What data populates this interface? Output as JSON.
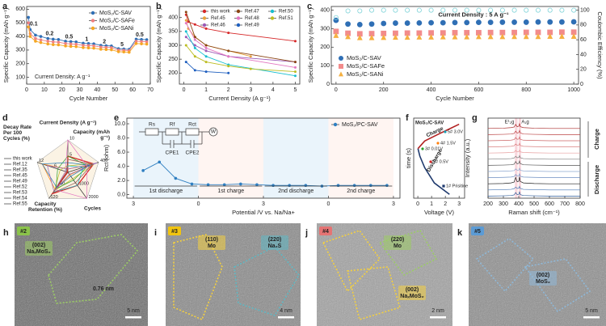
{
  "chart_data": [
    {
      "type": "line",
      "label": "a",
      "xlabel": "Cycle Number",
      "ylabel": "Specific Capacity (mAh g⁻¹)",
      "x": [
        1,
        2,
        5,
        8,
        12,
        15,
        18,
        22,
        25,
        28,
        32,
        35,
        38,
        42,
        45,
        48,
        52,
        55,
        58,
        62,
        65,
        68
      ],
      "xlim": [
        0,
        70
      ],
      "xticks": [
        0,
        10,
        20,
        30,
        40,
        50,
        60,
        70
      ],
      "ylim": [
        50,
        620
      ],
      "yticks": [
        100,
        200,
        300,
        400,
        500,
        600
      ],
      "markers": true,
      "legend": "upper right",
      "annotations": [
        "0.1",
        "0.2",
        "0.5",
        "1",
        "2",
        "5",
        "0.5",
        "Current Density: A g⁻¹"
      ],
      "series": [
        {
          "name": "MoS₂/C-SAV",
          "color": "#2f6fb5",
          "values": [
            540,
            450,
            410,
            400,
            385,
            380,
            378,
            365,
            362,
            360,
            350,
            348,
            346,
            335,
            332,
            330,
            310,
            308,
            305,
            380,
            378,
            376
          ]
        },
        {
          "name": "MoS₂/C-SAFe",
          "color": "#f08080",
          "values": [
            500,
            420,
            385,
            375,
            365,
            360,
            358,
            348,
            345,
            343,
            335,
            333,
            331,
            322,
            320,
            318,
            300,
            298,
            296,
            365,
            363,
            361
          ]
        },
        {
          "name": "MoS₂/C-SANi",
          "color": "#f5a623",
          "values": [
            470,
            400,
            365,
            355,
            345,
            340,
            338,
            330,
            327,
            325,
            318,
            316,
            314,
            306,
            304,
            302,
            288,
            286,
            284,
            348,
            346,
            344
          ]
        }
      ]
    },
    {
      "type": "line",
      "label": "b",
      "xlabel": "Current Density (A g⁻¹)",
      "ylabel": "Specific Capacity (mAh g⁻¹)",
      "xlim": [
        -0.2,
        5.2
      ],
      "xticks": [
        0,
        1,
        2,
        3,
        4,
        5
      ],
      "ylim": [
        160,
        440
      ],
      "yticks": [
        200,
        250,
        300,
        350,
        400
      ],
      "markers": true,
      "legend": "upper right",
      "series": [
        {
          "name": "this work",
          "color": "#d62728",
          "x": [
            0.1,
            0.2,
            0.5,
            1,
            2,
            5
          ],
          "values": [
            410,
            385,
            375,
            360,
            345,
            315
          ]
        },
        {
          "name": "Ref.45",
          "color": "#e8a33d",
          "x": [
            0.1,
            0.2,
            0.5,
            1,
            2,
            3
          ],
          "values": [
            390,
            360,
            330,
            300,
            280,
            260
          ]
        },
        {
          "name": "Ref.46",
          "color": "#9b59b6",
          "x": [
            0.1,
            0.5,
            1,
            2,
            5
          ],
          "values": [
            330,
            300,
            280,
            260,
            240
          ]
        },
        {
          "name": "Ref.47",
          "color": "#8b4513",
          "x": [
            0.1,
            0.5,
            1,
            2,
            5
          ],
          "values": [
            420,
            330,
            300,
            280,
            240
          ]
        },
        {
          "name": "Ref.48",
          "color": "#e377c2",
          "x": [
            0.1,
            0.5,
            1,
            2,
            5
          ],
          "values": [
            380,
            320,
            290,
            260,
            220
          ]
        },
        {
          "name": "Ref.49",
          "color": "#1f5fbf",
          "x": [
            0.1,
            0.5,
            1,
            2
          ],
          "values": [
            240,
            210,
            205,
            200
          ]
        },
        {
          "name": "Ref.50",
          "color": "#17becf",
          "x": [
            0.1,
            0.5,
            1,
            2,
            5
          ],
          "values": [
            350,
            290,
            260,
            230,
            190
          ]
        },
        {
          "name": "Ref.51",
          "color": "#bcbd22",
          "x": [
            0.1,
            0.5,
            1,
            2,
            3,
            5
          ],
          "values": [
            300,
            260,
            240,
            225,
            215,
            205
          ]
        }
      ]
    },
    {
      "type": "scatter",
      "label": "c",
      "xlabel": "Cycle Number",
      "ylabel": "Specific Capacity (mAh g⁻¹)",
      "y2label": "Coulombic Efficiency (%)",
      "x": [
        0,
        50,
        100,
        150,
        200,
        250,
        300,
        350,
        400,
        450,
        500,
        550,
        600,
        650,
        700,
        750,
        800,
        850,
        900,
        950,
        1000
      ],
      "xlim": [
        -20,
        1020
      ],
      "xticks": [
        0,
        200,
        400,
        600,
        800,
        1000
      ],
      "ylim": [
        0,
        420
      ],
      "yticks": [
        0,
        100,
        200,
        300,
        400
      ],
      "y2lim": [
        0,
        105
      ],
      "y2ticks": [
        0,
        20,
        40,
        60,
        80,
        100
      ],
      "legend": "lower left",
      "annotations": [
        "Current Density : 5 A g⁻¹"
      ],
      "series": [
        {
          "name": "MoS₂/C-SAV",
          "color": "#2f6fb5",
          "marker": "circle",
          "values": [
            345,
            325,
            322,
            325,
            328,
            330,
            330,
            331,
            332,
            332,
            333,
            333,
            334,
            334,
            335,
            335,
            335,
            336,
            336,
            336,
            337
          ]
        },
        {
          "name": "MoS₂/C-SAFe",
          "color": "#f28b8b",
          "marker": "square",
          "values": [
            285,
            275,
            272,
            273,
            274,
            275,
            276,
            276,
            277,
            277,
            278,
            278,
            278,
            279,
            279,
            279,
            280,
            280,
            280,
            281,
            281
          ]
        },
        {
          "name": "MoS₂/C-SANi",
          "color": "#f5b041",
          "marker": "triangle",
          "values": [
            262,
            255,
            250,
            250,
            251,
            252,
            252,
            253,
            253,
            254,
            254,
            254,
            255,
            255,
            255,
            256,
            256,
            256,
            257,
            257,
            257
          ]
        },
        {
          "color": "#7fd3d8",
          "marker": "ring",
          "axis": "y2",
          "values": [
            90,
            99,
            99,
            100,
            100,
            100,
            100,
            100,
            100,
            100,
            100,
            100,
            100,
            100,
            100,
            100,
            100,
            100,
            100,
            100,
            100
          ]
        }
      ]
    },
    {
      "type": "radar",
      "label": "d",
      "axes": [
        {
          "label": "Current Density (A g⁻¹)",
          "ticks": [
            5,
            10
          ]
        },
        {
          "label": "Capacity (mAh g⁻¹)",
          "ticks": [
            200,
            400
          ]
        },
        {
          "label": "Cycles",
          "ticks": [
            1000,
            2000
          ]
        },
        {
          "label": "Capacity Retention (%)",
          "ticks": [
            60,
            120
          ]
        },
        {
          "label": "Decay Rate Per 100 Cycles (%)",
          "ticks": [
            6,
            12
          ]
        }
      ],
      "legend": "left",
      "series": [
        {
          "name": "this work",
          "color": "#d62728",
          "values": [
            5,
            335,
            1000,
            98,
            0.2
          ]
        },
        {
          "name": "Ref.12",
          "color": "#ff7f0e",
          "values": [
            1,
            300,
            200,
            80,
            10
          ]
        },
        {
          "name": "Ref.35",
          "color": "#bcbd22",
          "values": [
            2,
            350,
            500,
            85,
            3
          ]
        },
        {
          "name": "Ref.45",
          "color": "#2ca02c",
          "values": [
            5,
            260,
            600,
            75,
            4
          ]
        },
        {
          "name": "Ref.49",
          "color": "#17becf",
          "values": [
            2,
            200,
            1000,
            90,
            1
          ]
        },
        {
          "name": "Ref.52",
          "color": "#1f77b4",
          "values": [
            3,
            280,
            300,
            70,
            10
          ]
        },
        {
          "name": "Ref.53",
          "color": "#9467bd",
          "values": [
            1,
            380,
            150,
            88,
            8
          ]
        },
        {
          "name": "Ref.54",
          "color": "#e377c2",
          "values": [
            10,
            250,
            2000,
            80,
            1
          ]
        },
        {
          "name": "Ref.55",
          "color": "#8c564b",
          "values": [
            4,
            320,
            800,
            95,
            0.6
          ]
        }
      ]
    },
    {
      "type": "line",
      "label": "e",
      "xlabel": "Potential /V vs. Na/Na+",
      "ylabel": "Rct (ohm)",
      "x": [
        0.15,
        0.4,
        0.65,
        0.9,
        1.15,
        1.4,
        1.65,
        1.9,
        2.15,
        2.4,
        2.65,
        2.9,
        3.15,
        3.4,
        3.65,
        3.9
      ],
      "xlim": [
        -0.1,
        4.1
      ],
      "xticks": [
        {
          "value": 0,
          "label": "3"
        },
        {
          "value": 1,
          "label": "0"
        },
        {
          "value": 2,
          "label": "3"
        },
        {
          "value": 3,
          "label": "0"
        },
        {
          "value": 4,
          "label": "3"
        }
      ],
      "ylim": [
        -0.5,
        10.8
      ],
      "yticks": [
        {
          "value": 0,
          "label": "0.0"
        },
        {
          "value": 2,
          "label": "2.0"
        },
        {
          "value": 4,
          "label": "4.0"
        },
        {
          "value": 6,
          "label": "6.0"
        },
        {
          "value": 8,
          "label": "8.0"
        },
        {
          "value": 10,
          "label": "10.0"
        }
      ],
      "markers": true,
      "legend": "upper right",
      "annotations": [
        "1st discharge",
        "1st charge",
        "2nd discharge",
        "2nd charge",
        "Rs",
        "Rf",
        "Rct",
        "CPE1",
        "CPE2",
        "W"
      ],
      "series": [
        {
          "name": "MoS₂/PC-SAV",
          "color": "#2f7fc1",
          "values": [
            3.4,
            4.6,
            2.3,
            1.5,
            1.4,
            1.4,
            1.5,
            1.4,
            1.3,
            1.3,
            1.3,
            1.2,
            1.3,
            1.3,
            1.3,
            1.3
          ]
        }
      ]
    },
    {
      "type": "line",
      "label": "f",
      "title": "MoS₂/C-SAV",
      "xlabel": "Voltage (V)",
      "ylabel": "time (s)",
      "xlim": [
        -0.3,
        3.4
      ],
      "xticks": [
        0,
        1,
        2,
        3
      ],
      "ylim": [
        0,
        1.05
      ],
      "points": [
        {
          "label": "1# Prisitine",
          "color": "#1f3a6e"
        },
        {
          "label": "2# 0.5V",
          "color": "#d62728"
        },
        {
          "label": "3# 0.01V",
          "color": "#2ca02c"
        },
        {
          "label": "4# 1.5V",
          "color": "#ff7f0e"
        },
        {
          "label": "5# 3.0V",
          "color": "#17a2b8"
        }
      ],
      "series": [
        {
          "name": "Discharge",
          "color": "#1f3a6e",
          "x": [
            2.3,
            1.2,
            0.5,
            0.15,
            0.01
          ],
          "values": [
            0.05,
            0.2,
            0.4,
            0.55,
            0.65
          ]
        },
        {
          "name": "Charge",
          "color": "#b22222",
          "x": [
            0.01,
            0.5,
            1.5,
            2.2,
            3.0
          ],
          "values": [
            0.65,
            0.75,
            0.84,
            0.9,
            0.97
          ]
        }
      ]
    },
    {
      "type": "spectra",
      "label": "g",
      "xlabel": "Raman shift (cm⁻¹)",
      "ylabel": "Intensity (a.u.)",
      "x": [
        200,
        300,
        350,
        370,
        380,
        390,
        400,
        405,
        410,
        430,
        500,
        600,
        700,
        800
      ],
      "xlim": [
        200,
        800
      ],
      "xticks": [
        200,
        300,
        400,
        500,
        600,
        700,
        800
      ],
      "annotations": [
        "E¹₂g",
        "A₁g",
        "Charge",
        "Discharge"
      ],
      "series": [
        {
          "color": "#2e5c9a",
          "values": [
            1.0,
            1.1,
            1.2,
            1.4,
            2.2,
            1.5,
            1.6,
            2.4,
            1.5,
            1.2,
            1.1,
            1.0,
            1.0,
            1.0
          ]
        },
        {
          "color": "#4a78b5",
          "values": [
            1.0,
            1.1,
            1.2,
            1.4,
            2.0,
            1.5,
            1.6,
            2.2,
            1.5,
            1.2,
            1.1,
            1.0,
            1.0,
            1.0
          ]
        },
        {
          "color": "#222222",
          "values": [
            1.0,
            1.1,
            1.3,
            1.6,
            3.2,
            1.7,
            1.9,
            3.4,
            1.8,
            1.3,
            1.1,
            1.0,
            1.0,
            1.0
          ]
        },
        {
          "color": "#6e8fc2",
          "values": [
            1.0,
            1.1,
            1.2,
            1.4,
            2.1,
            1.5,
            1.6,
            2.3,
            1.5,
            1.2,
            1.1,
            1.0,
            1.0,
            1.0
          ]
        },
        {
          "color": "#8da6cf",
          "values": [
            1.0,
            1.1,
            1.2,
            1.3,
            1.9,
            1.4,
            1.5,
            2.1,
            1.4,
            1.2,
            1.1,
            1.0,
            1.0,
            1.0
          ]
        },
        {
          "color": "#555555",
          "values": [
            1.0,
            1.1,
            1.2,
            1.4,
            2.3,
            1.5,
            1.7,
            2.5,
            1.6,
            1.2,
            1.1,
            1.0,
            1.0,
            1.0
          ]
        },
        {
          "color": "#7a7a7a",
          "values": [
            1.0,
            1.1,
            1.2,
            1.4,
            2.0,
            1.5,
            1.6,
            2.2,
            1.5,
            1.2,
            1.1,
            1.0,
            1.0,
            1.0
          ]
        },
        {
          "color": "#e8a0a0",
          "values": [
            1.0,
            1.1,
            1.2,
            1.3,
            1.9,
            1.4,
            1.5,
            2.0,
            1.4,
            1.2,
            1.1,
            1.0,
            1.0,
            1.0
          ]
        },
        {
          "color": "#d98080",
          "values": [
            1.0,
            1.1,
            1.2,
            1.4,
            2.0,
            1.5,
            1.6,
            2.2,
            1.5,
            1.2,
            1.1,
            1.0,
            1.0,
            1.0
          ]
        },
        {
          "color": "#cc6666",
          "values": [
            1.0,
            1.1,
            1.2,
            1.4,
            2.1,
            1.5,
            1.6,
            2.3,
            1.5,
            1.2,
            1.1,
            1.0,
            1.0,
            1.0
          ]
        },
        {
          "color": "#bb4444",
          "values": [
            1.0,
            1.1,
            1.2,
            1.4,
            2.2,
            1.5,
            1.7,
            2.4,
            1.6,
            1.2,
            1.1,
            1.0,
            1.0,
            1.0
          ]
        },
        {
          "color": "#a82a2a",
          "values": [
            1.0,
            1.1,
            1.3,
            1.5,
            2.4,
            1.6,
            1.8,
            2.6,
            1.6,
            1.3,
            1.1,
            1.0,
            1.0,
            1.0
          ]
        }
      ]
    }
  ],
  "images": [
    {
      "label": "h",
      "tag": "#2",
      "tag_color": "#8bc34a",
      "notes": [
        "(002)",
        "NaₓMoS₂",
        "0.76 nm"
      ],
      "scale": "5 nm"
    },
    {
      "label": "i",
      "tag": "#3",
      "tag_color": "#f1c40f",
      "notes": [
        "(110)",
        "Mo",
        "(220)",
        "Na₂S"
      ],
      "scale": "4 nm"
    },
    {
      "label": "j",
      "tag": "#4",
      "tag_color": "#e57373",
      "notes": [
        "(220)",
        "Mo",
        "(002)",
        "NaₓMoS₂"
      ],
      "scale": "2 nm"
    },
    {
      "label": "k",
      "tag": "#5",
      "tag_color": "#5b9bd5",
      "notes": [
        "(002)",
        "MoS₂"
      ],
      "scale": "5 nm"
    }
  ]
}
